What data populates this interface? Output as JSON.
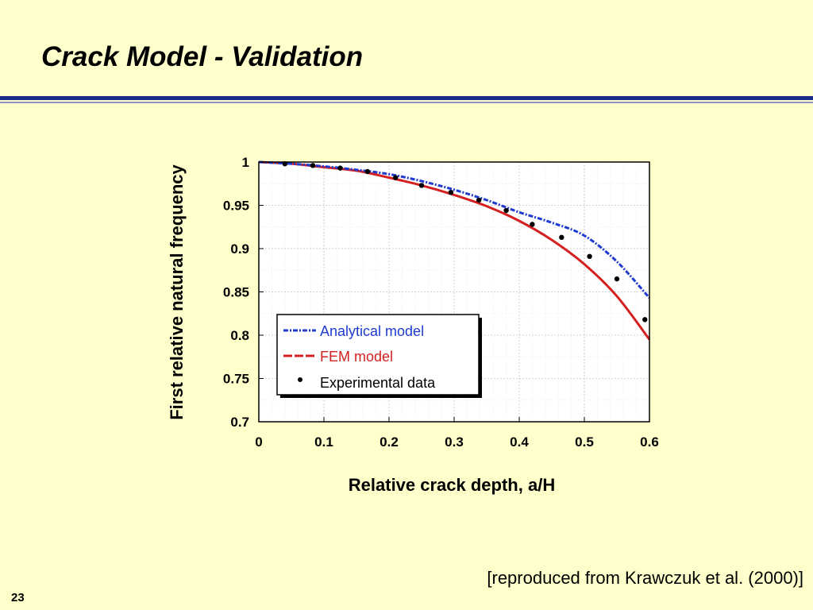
{
  "slide": {
    "title": "Crack Model - Validation",
    "citation": "[reproduced from Krawczuk et al. (2000)]",
    "page_number": "23"
  },
  "colors": {
    "background": "#ffffcc",
    "rule": "#1c2a8c",
    "analytical": "#1f3bd0",
    "fem": "#d42020",
    "experimental": "#000000"
  },
  "chart_data": {
    "type": "line",
    "xlabel": "Relative crack depth, a/H",
    "ylabel": "First relative natural frequency",
    "xlim": [
      0,
      0.6
    ],
    "ylim": [
      0.7,
      1.0
    ],
    "x_ticks": [
      0,
      0.1,
      0.2,
      0.3,
      0.4,
      0.5,
      0.6
    ],
    "x_tick_labels": [
      "0",
      "0.1",
      "0.2",
      "0.3",
      "0.4",
      "0.5",
      "0.6"
    ],
    "y_ticks": [
      0.7,
      0.75,
      0.8,
      0.85,
      0.9,
      0.95,
      1.0
    ],
    "y_tick_labels": [
      "0.7",
      "0.75",
      "0.8",
      "0.85",
      "0.9",
      "0.95",
      "1"
    ],
    "grid": true,
    "legend_position": "lower-left",
    "series": [
      {
        "name": "Analytical model",
        "style": "dashed",
        "x": [
          0,
          0.05,
          0.1,
          0.15,
          0.2,
          0.25,
          0.3,
          0.35,
          0.4,
          0.45,
          0.5,
          0.55,
          0.6
        ],
        "y": [
          1.0,
          0.998,
          0.995,
          0.991,
          0.986,
          0.978,
          0.968,
          0.956,
          0.942,
          0.93,
          0.915,
          0.885,
          0.843
        ]
      },
      {
        "name": "FEM model",
        "style": "solid",
        "x": [
          0,
          0.05,
          0.1,
          0.15,
          0.2,
          0.25,
          0.3,
          0.35,
          0.4,
          0.45,
          0.5,
          0.55,
          0.6
        ],
        "y": [
          1.0,
          0.998,
          0.994,
          0.99,
          0.982,
          0.973,
          0.962,
          0.949,
          0.932,
          0.91,
          0.882,
          0.845,
          0.795
        ]
      },
      {
        "name": "Experimental data",
        "style": "markers",
        "x": [
          0.04,
          0.083,
          0.125,
          0.167,
          0.21,
          0.25,
          0.295,
          0.338,
          0.38,
          0.42,
          0.465,
          0.508,
          0.55,
          0.593
        ],
        "y": [
          0.998,
          0.996,
          0.993,
          0.989,
          0.982,
          0.973,
          0.965,
          0.956,
          0.944,
          0.928,
          0.913,
          0.891,
          0.865,
          0.818
        ]
      }
    ]
  }
}
